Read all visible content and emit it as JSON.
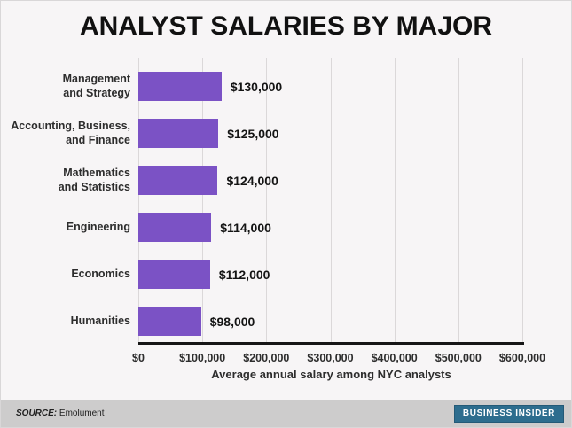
{
  "title": "ANALYST SALARIES BY MAJOR",
  "chart_data": {
    "type": "bar",
    "orientation": "horizontal",
    "title": "ANALYST SALARIES BY MAJOR",
    "categories": [
      "Management and Strategy",
      "Accounting, Business, and Finance",
      "Mathematics and Statistics",
      "Engineering",
      "Economics",
      "Humanities"
    ],
    "category_label_lines": [
      [
        "Management",
        "and Strategy"
      ],
      [
        "Accounting, Business,",
        "and Finance"
      ],
      [
        "Mathematics",
        "and Statistics"
      ],
      [
        "Engineering"
      ],
      [
        "Economics"
      ],
      [
        "Humanities"
      ]
    ],
    "values": [
      130000,
      125000,
      124000,
      114000,
      112000,
      98000
    ],
    "value_labels": [
      "$130,000",
      "$125,000",
      "$124,000",
      "$114,000",
      "$112,000",
      "$98,000"
    ],
    "x_ticks": [
      0,
      100000,
      200000,
      300000,
      400000,
      500000,
      600000
    ],
    "x_tick_labels": [
      "$0",
      "$100,000",
      "$200,000",
      "$300,000",
      "$400,000",
      "$500,000",
      "$600,000"
    ],
    "xlabel": "Average annual salary among NYC analysts",
    "ylabel": "",
    "xlim": [
      0,
      600000
    ],
    "grid": true,
    "legend": "none",
    "bar_color": "#7B52C5"
  },
  "footer": {
    "source_label": "SOURCE:",
    "source_value": "Emolument",
    "logo_text": "BUSINESS INSIDER"
  },
  "colors": {
    "bar": "#7B52C5",
    "axis_line": "#161616",
    "gridline": "#dbd8d9",
    "background": "#f7f5f6",
    "footer_background": "#cdcccc",
    "logo_background": "#2d6d8e",
    "text": "#2d2d2d"
  }
}
